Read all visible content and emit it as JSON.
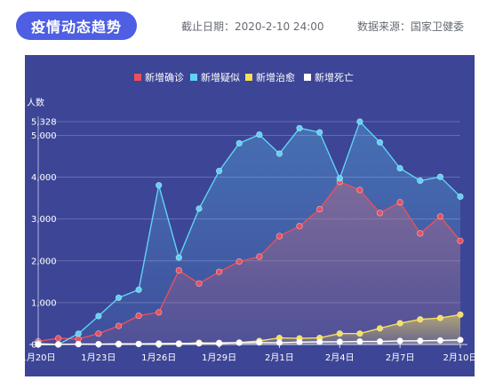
{
  "header": {
    "title": "疫情动态趋势",
    "deadline_label": "截止日期：",
    "deadline_value": "2020-2-10 24:00",
    "source_label": "数据来源：",
    "source_value": "国家卫健委"
  },
  "chart_data": {
    "type": "line",
    "ylabel": "人数",
    "ylim": [
      0,
      5328
    ],
    "yticks": [
      0,
      1000,
      2000,
      3000,
      4000,
      5000,
      5328
    ],
    "ytick_labels": [
      "0",
      "1,000",
      "2,000",
      "3,000",
      "4,000",
      "5,000",
      "5,328"
    ],
    "x": [
      "1月20日",
      "1月21日",
      "1月22日",
      "1月23日",
      "1月24日",
      "1月25日",
      "1月26日",
      "1月27日",
      "1月28日",
      "1月29日",
      "1月30日",
      "1月31日",
      "2月1日",
      "2月2日",
      "2月3日",
      "2月4日",
      "2月5日",
      "2月6日",
      "2月7日",
      "2月8日",
      "2月9日",
      "2月10日"
    ],
    "xtick_labels": [
      "1月20日",
      "1月23日",
      "1月26日",
      "1月29日",
      "2月1日",
      "2月4日",
      "2月7日",
      "2月10日"
    ],
    "legend_position": "top-center",
    "grid": true,
    "series": [
      {
        "name": "新增确诊",
        "color": "#e9505d",
        "values": [
          77,
          149,
          131,
          259,
          444,
          688,
          769,
          1771,
          1459,
          1737,
          1982,
          2102,
          2590,
          2829,
          3235,
          3887,
          3694,
          3143,
          3399,
          2656,
          3062,
          2478
        ]
      },
      {
        "name": "新增疑似",
        "color": "#5fd3f5",
        "values": [
          27,
          0,
          257,
          680,
          1118,
          1309,
          3806,
          2077,
          3248,
          4148,
          4812,
          5019,
          4562,
          5173,
          5072,
          3971,
          5328,
          4833,
          4214,
          3916,
          4008,
          3536
        ]
      },
      {
        "name": "新增治愈",
        "color": "#f5e05a",
        "values": [
          0,
          3,
          8,
          6,
          3,
          11,
          2,
          9,
          43,
          21,
          47,
          85,
          157,
          147,
          157,
          262,
          261,
          387,
          510,
          600,
          632,
          716
        ]
      },
      {
        "name": "新增死亡",
        "color": "#ffffff",
        "values": [
          0,
          3,
          8,
          8,
          16,
          15,
          24,
          26,
          26,
          38,
          43,
          46,
          45,
          57,
          64,
          65,
          73,
          73,
          86,
          89,
          97,
          108
        ]
      }
    ]
  }
}
